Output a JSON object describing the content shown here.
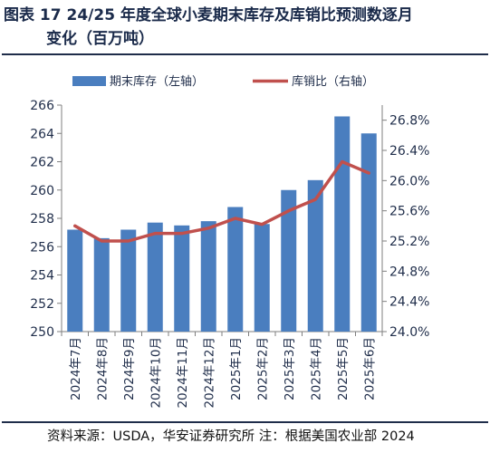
{
  "title": {
    "line1": "图表 17 24/25 年度全球小麦期末库存及库销比预测数逐月",
    "line2": "变化（百万吨）"
  },
  "source": "资料来源：USDA，华安证券研究所  注：根据美国农业部 2024",
  "colors": {
    "bar": "#4a7ebf",
    "line": "#c0504d",
    "axis": "#7f7f7f",
    "text": "#1f2d4a"
  },
  "chart_data": {
    "type": "bar",
    "categories": [
      "2024年7月",
      "2024年8月",
      "2024年9月",
      "2024年10月",
      "2024年11月",
      "2024年12月",
      "2025年1月",
      "2025年2月",
      "2025年3月",
      "2025年4月",
      "2025年5月",
      "2025年6月"
    ],
    "series": [
      {
        "name": "期末库存（左轴）",
        "type": "bar",
        "axis": "left",
        "values": [
          257.2,
          256.6,
          257.2,
          257.7,
          257.5,
          257.8,
          258.8,
          257.6,
          260.0,
          260.7,
          265.2,
          264.0
        ]
      },
      {
        "name": "库销比（右轴）",
        "type": "line",
        "axis": "right",
        "values": [
          25.4,
          25.2,
          25.2,
          25.3,
          25.3,
          25.37,
          25.5,
          25.42,
          25.6,
          25.75,
          26.25,
          26.1
        ]
      }
    ],
    "y_left": {
      "min": 250,
      "max": 266,
      "step": 2,
      "tick_labels": [
        "250",
        "252",
        "254",
        "256",
        "258",
        "260",
        "262",
        "264",
        "266"
      ]
    },
    "y_right": {
      "min": 24.0,
      "max": 27.0,
      "unit": "%",
      "tick_labels": [
        "24.0%",
        "24.4%",
        "24.8%",
        "25.2%",
        "25.6%",
        "26.0%",
        "26.4%",
        "26.8%"
      ],
      "tick_values": [
        24.0,
        24.4,
        24.8,
        25.2,
        25.6,
        26.0,
        26.4,
        26.8
      ]
    },
    "legend_position": "top",
    "grid": false
  }
}
